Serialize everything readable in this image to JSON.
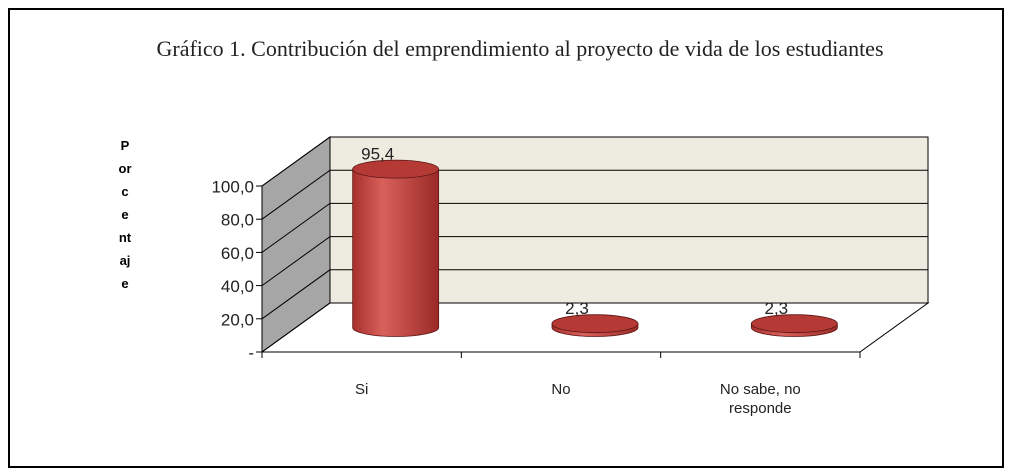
{
  "chart_data": {
    "type": "bar3d",
    "title": "Gráfico 1. Contribución del emprendimiento al proyecto de vida de los estudiantes",
    "y_label": "Porcentaje",
    "categories": [
      "Si",
      "No",
      "No sabe, no responde"
    ],
    "values": [
      95.4,
      2.3,
      2.3
    ],
    "value_labels": [
      "95,4",
      "2,3",
      "2,3"
    ],
    "color": "#c0504d",
    "ylim": [
      0,
      100
    ],
    "yticks": [
      {
        "value": 0,
        "label": "-"
      },
      {
        "value": 20,
        "label": "20,0"
      },
      {
        "value": 40,
        "label": "40,0"
      },
      {
        "value": 60,
        "label": "60,0"
      },
      {
        "value": 80,
        "label": "80,0"
      },
      {
        "value": 100,
        "label": "100,0"
      }
    ],
    "grid": true
  }
}
